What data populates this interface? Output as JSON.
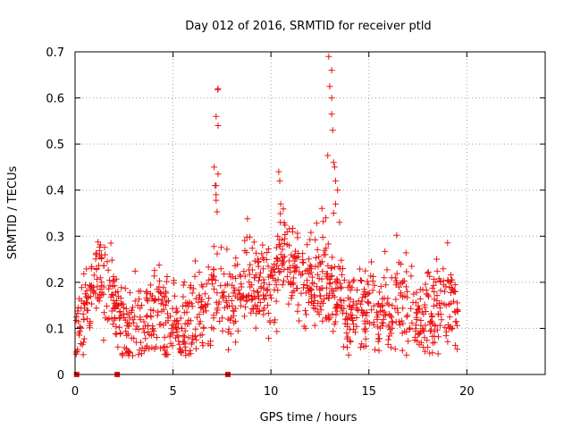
{
  "chart_data": {
    "type": "scatter",
    "title": "Day 012 of 2016, SRMTID for receiver ptld",
    "xlabel": "GPS time / hours",
    "ylabel": "SRMTID / TECUs",
    "xlim": [
      0,
      24
    ],
    "ylim": [
      0,
      0.7
    ],
    "x_ticks": [
      0,
      5,
      10,
      15,
      20
    ],
    "x_tick_labels": [
      "0",
      "5",
      "10",
      "15",
      "20"
    ],
    "y_ticks": [
      0,
      0.1,
      0.2,
      0.3,
      0.4,
      0.5,
      0.6,
      0.7
    ],
    "y_tick_labels": [
      "0",
      "0.1",
      "0.2",
      "0.3",
      "0.4",
      "0.5",
      "0.6",
      "0.7"
    ],
    "grid": true,
    "series": [
      {
        "name": "SRMTID",
        "marker": "plus",
        "color": "#ee1111",
        "baseline": [
          [
            0.0,
            0.08
          ],
          [
            0.4,
            0.12
          ],
          [
            0.8,
            0.16
          ],
          [
            1.0,
            0.2
          ],
          [
            1.4,
            0.19
          ],
          [
            1.8,
            0.2
          ],
          [
            2.1,
            0.13
          ],
          [
            2.5,
            0.11
          ],
          [
            3.0,
            0.11
          ],
          [
            3.5,
            0.11
          ],
          [
            4.0,
            0.12
          ],
          [
            4.5,
            0.13
          ],
          [
            5.0,
            0.12
          ],
          [
            5.5,
            0.1
          ],
          [
            6.0,
            0.11
          ],
          [
            6.5,
            0.13
          ],
          [
            7.0,
            0.18
          ],
          [
            7.5,
            0.19
          ],
          [
            8.0,
            0.15
          ],
          [
            8.5,
            0.2
          ],
          [
            9.0,
            0.2
          ],
          [
            9.5,
            0.19
          ],
          [
            10.0,
            0.18
          ],
          [
            10.5,
            0.25
          ],
          [
            11.0,
            0.24
          ],
          [
            11.5,
            0.21
          ],
          [
            12.0,
            0.2
          ],
          [
            12.5,
            0.22
          ],
          [
            13.0,
            0.19
          ],
          [
            13.5,
            0.16
          ],
          [
            14.0,
            0.14
          ],
          [
            14.5,
            0.14
          ],
          [
            15.0,
            0.15
          ],
          [
            15.5,
            0.14
          ],
          [
            16.0,
            0.15
          ],
          [
            16.5,
            0.17
          ],
          [
            17.0,
            0.15
          ],
          [
            17.5,
            0.13
          ],
          [
            18.0,
            0.13
          ],
          [
            18.5,
            0.15
          ],
          [
            19.0,
            0.16
          ],
          [
            19.5,
            0.13
          ]
        ],
        "x_range": [
          0.05,
          19.55
        ],
        "point_count": 1200,
        "noise_amplitude": 0.05,
        "outliers": [
          [
            7.1,
            0.45
          ],
          [
            7.15,
            0.41
          ],
          [
            7.2,
            0.39
          ],
          [
            7.25,
            0.353
          ],
          [
            7.3,
            0.62
          ],
          [
            7.28,
            0.618
          ],
          [
            7.2,
            0.56
          ],
          [
            7.3,
            0.54
          ],
          [
            7.3,
            0.435
          ],
          [
            7.2,
            0.41
          ],
          [
            7.2,
            0.378
          ],
          [
            8.8,
            0.338
          ],
          [
            10.4,
            0.44
          ],
          [
            10.45,
            0.42
          ],
          [
            10.5,
            0.37
          ],
          [
            12.6,
            0.36
          ],
          [
            12.9,
            0.475
          ],
          [
            12.95,
            0.69
          ],
          [
            13.1,
            0.66
          ],
          [
            13.0,
            0.625
          ],
          [
            13.1,
            0.6
          ],
          [
            13.1,
            0.565
          ],
          [
            13.15,
            0.53
          ],
          [
            13.2,
            0.46
          ],
          [
            13.25,
            0.45
          ],
          [
            13.3,
            0.42
          ],
          [
            13.4,
            0.4
          ],
          [
            13.3,
            0.37
          ],
          [
            13.2,
            0.35
          ],
          [
            13.5,
            0.33
          ],
          [
            12.8,
            0.34
          ]
        ],
        "zero_markers": [
          0.08,
          2.15,
          7.8
        ]
      }
    ]
  }
}
